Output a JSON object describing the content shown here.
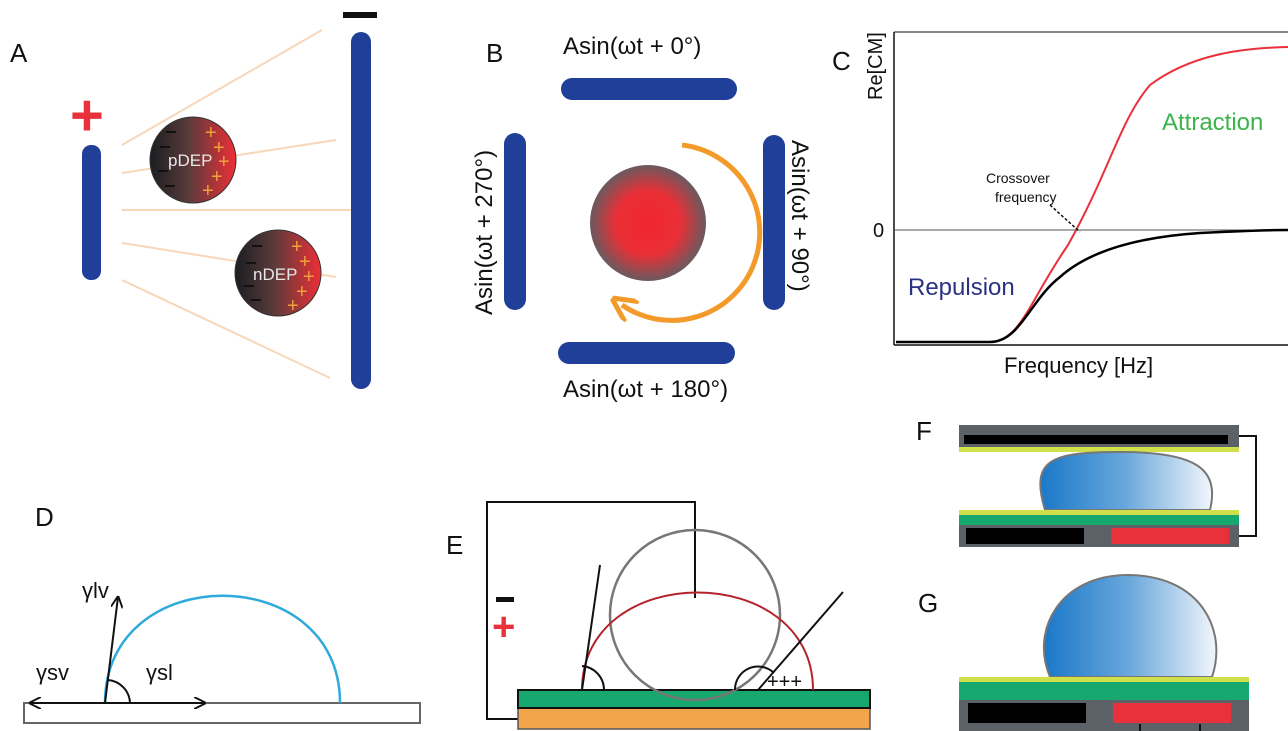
{
  "panels": {
    "a": {
      "letter": "A",
      "plus": "+",
      "minus": "−",
      "particle_top": "pDEP",
      "particle_bottom": "nDEP",
      "minus_sign": "–",
      "plus_sign": "+"
    },
    "b": {
      "letter": "B",
      "top": "Asin(ωt + 0°)",
      "right": "Asin(ωt + 90°)",
      "bottom": "Asin(ωt + 180°)",
      "left": "Asin(ωt + 270°)"
    },
    "c": {
      "letter": "C",
      "ylabel": "Re[CM]",
      "xlabel": "Frequency [Hz]",
      "zero": "0",
      "attraction": "Attraction",
      "repulsion": "Repulsion",
      "crossover_line1": "Crossover",
      "crossover_line2": "frequency"
    },
    "d": {
      "letter": "D",
      "gamma_lv": "γlv",
      "gamma_sv": "γsv",
      "gamma_sl": "γsl"
    },
    "e": {
      "letter": "E",
      "minus": "−",
      "plus": "+",
      "charges": "+++"
    },
    "f": {
      "letter": "F"
    },
    "g": {
      "letter": "G"
    }
  },
  "colors": {
    "electrode": "#1f3f99",
    "red": "#e8313a",
    "orange": "#f39a2b",
    "green_text": "#3cb44b",
    "curve_red": "#e8313a",
    "curve_black": "#000000",
    "cyan": "#2eaadc",
    "green_layer": "#16a86f",
    "orange_layer": "#f2a54a",
    "yellow_layer": "#cfe04a",
    "gray_frame": "#5b6166"
  }
}
